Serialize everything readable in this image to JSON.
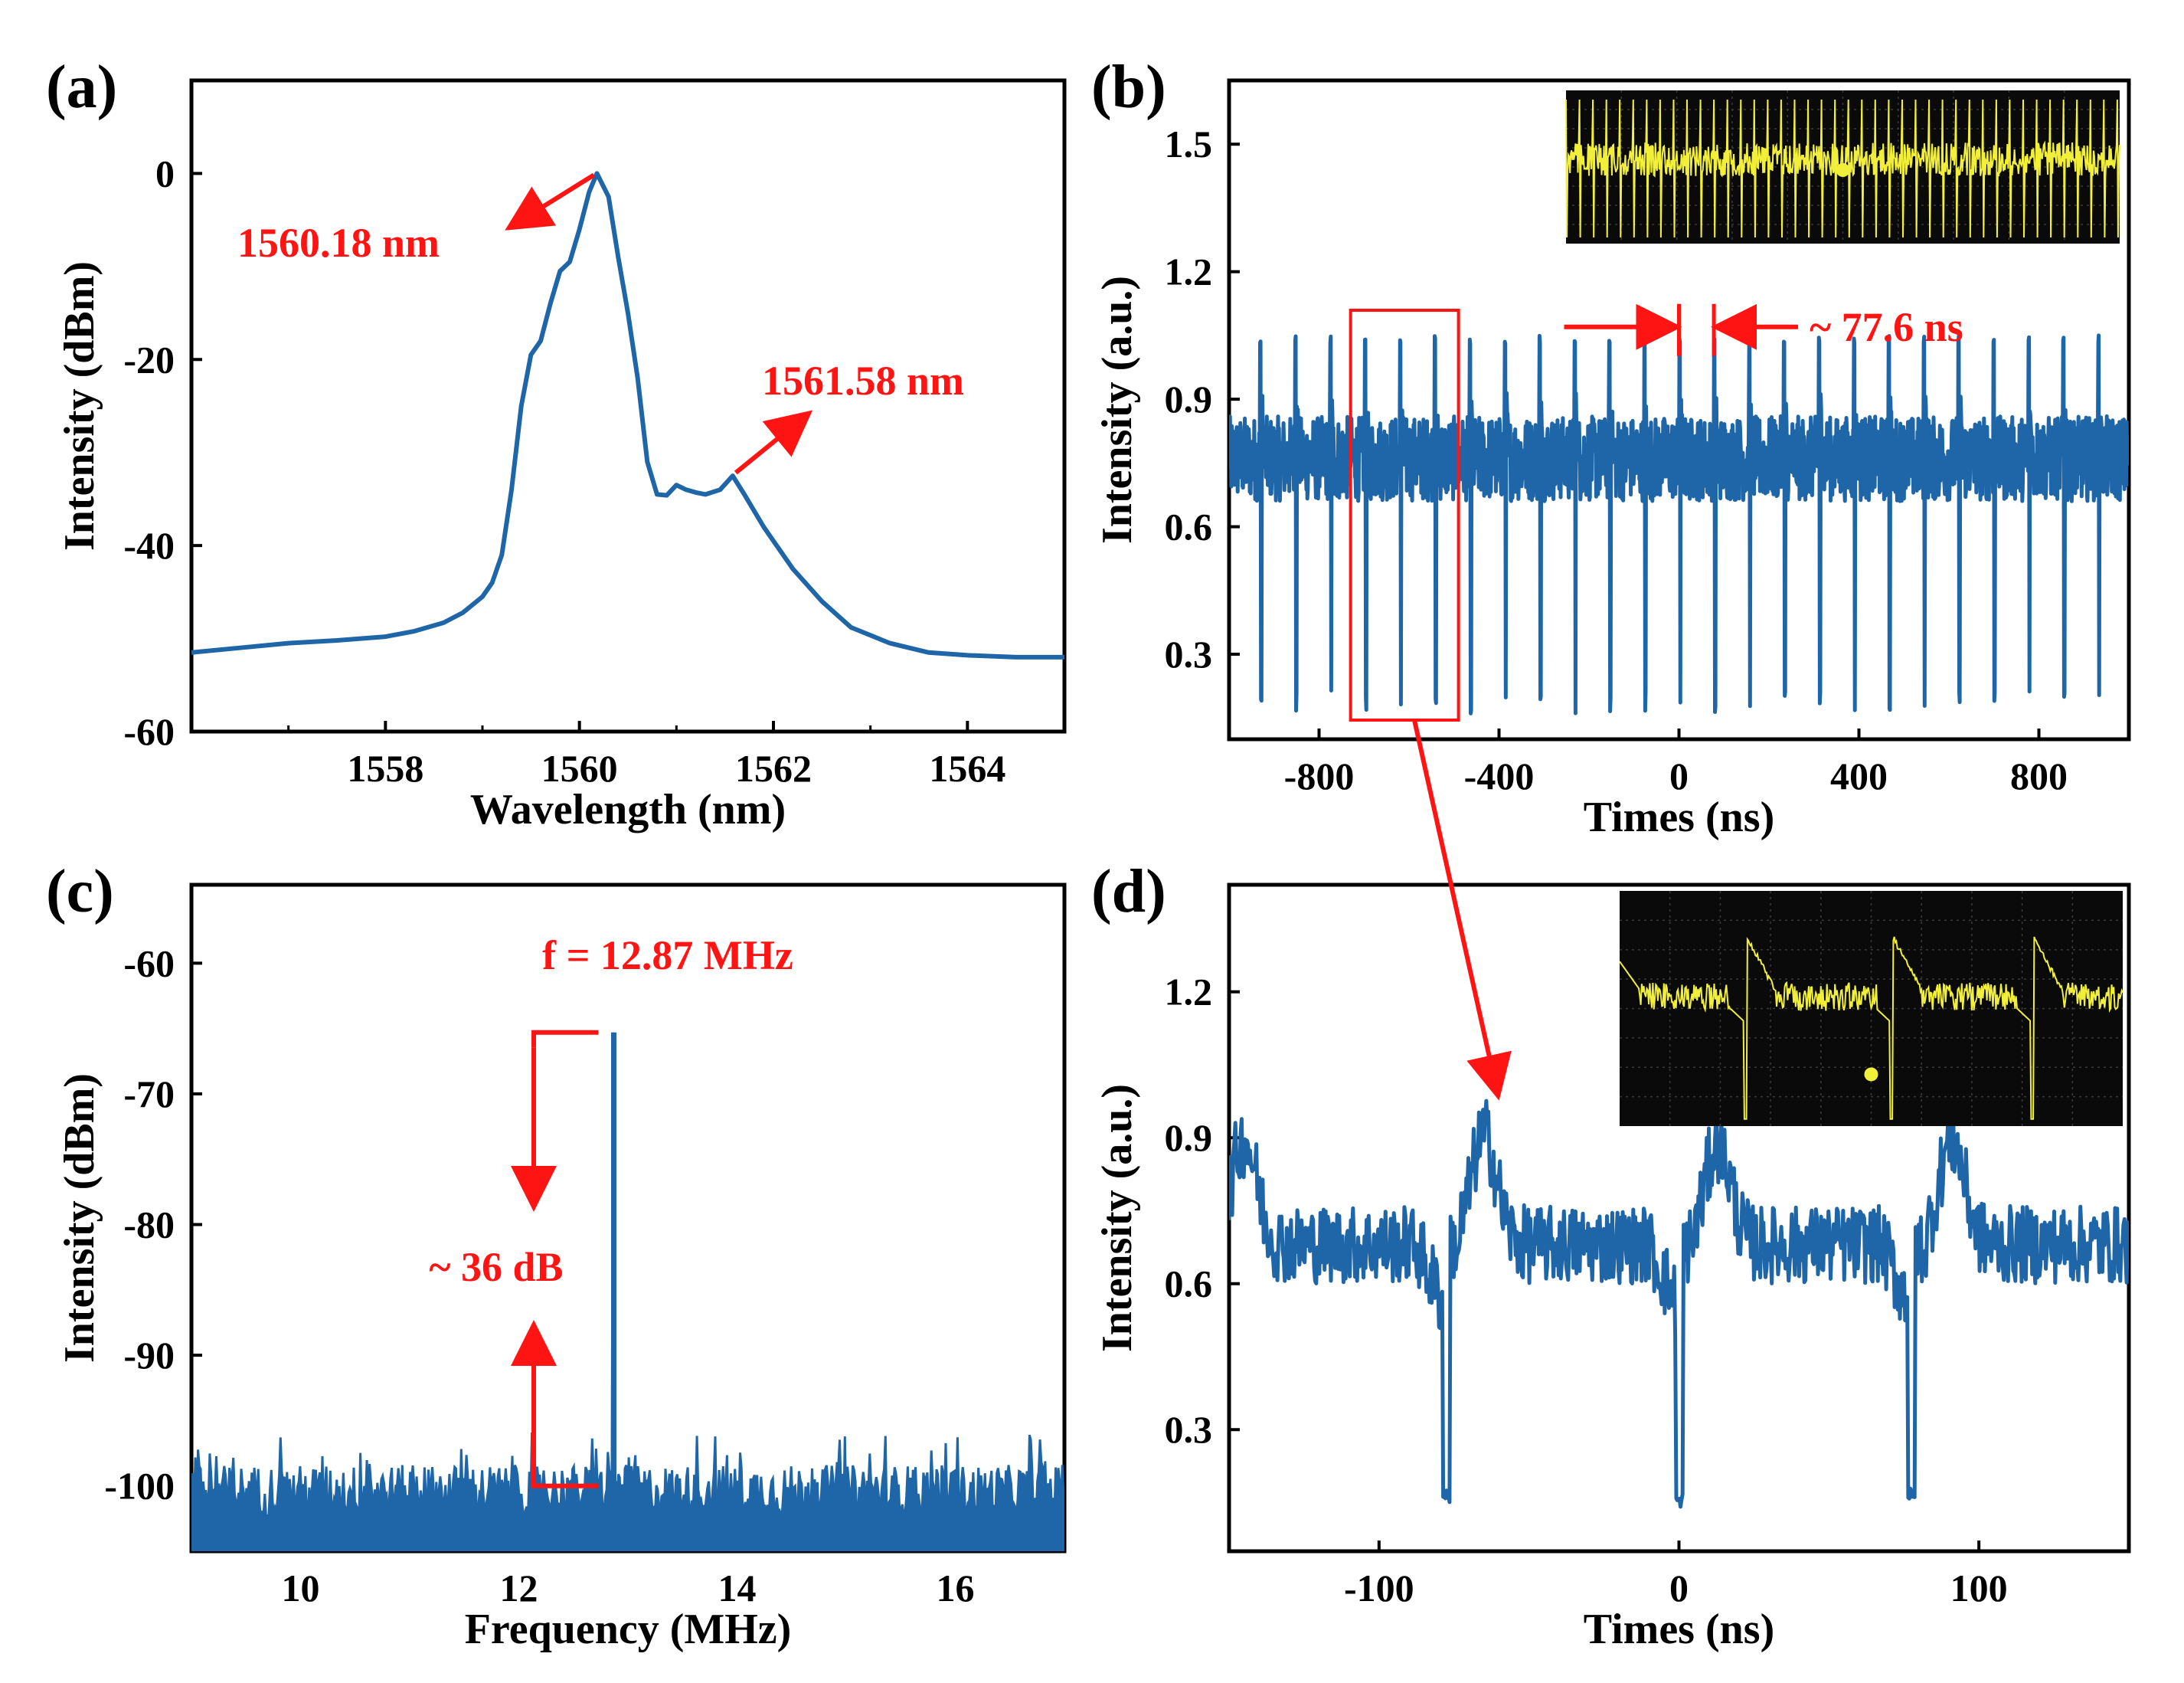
{
  "colors": {
    "trace": "#1f66a8",
    "annotation": "#ff1414",
    "scope_bg": "#0a0a0a",
    "scope_trace": "#f2ef3a"
  },
  "chart_data": [
    {
      "id": "a",
      "panel_label": "(a)",
      "type": "line",
      "title": "",
      "xlabel": "Wavelength (nm)",
      "ylabel": "Intensity (dBm)",
      "xlim": [
        1556.0,
        1565.0
      ],
      "ylim": [
        -60,
        10
      ],
      "xticks": [
        1558,
        1560,
        1562,
        1564
      ],
      "yticks": [
        0,
        -20,
        -40,
        -60
      ],
      "x": [
        1556.0,
        1556.5,
        1557.0,
        1557.5,
        1558.0,
        1558.3,
        1558.6,
        1558.8,
        1559.0,
        1559.1,
        1559.2,
        1559.3,
        1559.4,
        1559.5,
        1559.6,
        1559.7,
        1559.8,
        1559.9,
        1560.0,
        1560.1,
        1560.18,
        1560.3,
        1560.4,
        1560.5,
        1560.6,
        1560.7,
        1560.8,
        1560.9,
        1561.0,
        1561.1,
        1561.2,
        1561.3,
        1561.45,
        1561.58,
        1561.7,
        1561.9,
        1562.2,
        1562.5,
        1562.8,
        1563.2,
        1563.6,
        1564.0,
        1564.5,
        1565.0
      ],
      "y": [
        -51.5,
        -51.0,
        -50.5,
        -50.2,
        -49.8,
        -49.2,
        -48.3,
        -47.2,
        -45.5,
        -44.0,
        -41.0,
        -34.0,
        -25.0,
        -19.5,
        -18.0,
        -14.0,
        -10.5,
        -9.5,
        -6.0,
        -2.0,
        0.0,
        -2.5,
        -9.0,
        -15.0,
        -22.0,
        -31.0,
        -34.5,
        -34.6,
        -33.5,
        -34.0,
        -34.3,
        -34.5,
        -34.0,
        -32.5,
        -34.5,
        -38.0,
        -42.5,
        -46.0,
        -48.8,
        -50.5,
        -51.5,
        -51.8,
        -52.0,
        -52.0
      ],
      "annotations": [
        {
          "text": "1560.18 nm",
          "x": 1560.18,
          "y": 0.0
        },
        {
          "text": "1561.58 nm",
          "x": 1561.58,
          "y": -32.5
        }
      ]
    },
    {
      "id": "b",
      "panel_label": "(b)",
      "type": "line",
      "title": "",
      "xlabel": "Times (ns)",
      "ylabel": "Intensity (a.u.)",
      "xlim": [
        -1000,
        1000
      ],
      "ylim": [
        0.1,
        1.65
      ],
      "xticks": [
        -800,
        -400,
        0,
        400,
        800
      ],
      "yticks": [
        0.3,
        0.6,
        0.9,
        1.2,
        1.5
      ],
      "series": [
        {
          "name": "pulse train",
          "period_ns": 77.6,
          "baseline": 0.76,
          "pulse_peak_max": 1.05,
          "pulse_dip_min": 0.16
        }
      ],
      "annotations": [
        {
          "text": "~ 77.6 ns",
          "x": 38.8,
          "y": 1.07
        }
      ],
      "zoom_box_x": [
        -730,
        -490
      ],
      "inset": "oscilloscope screen"
    },
    {
      "id": "c",
      "panel_label": "(c)",
      "type": "line",
      "title": "",
      "xlabel": "Frequency (MHz)",
      "ylabel": "Intensity  (dBm)",
      "xlim": [
        9.0,
        17.0
      ],
      "ylim": [
        -105,
        -54
      ],
      "xticks": [
        10,
        12,
        14,
        16
      ],
      "yticks": [
        -60,
        -70,
        -80,
        -90,
        -100
      ],
      "series": [
        {
          "name": "RF spectrum",
          "peak_x": 12.87,
          "peak_y": -65.3,
          "noise_floor": -101
        }
      ],
      "annotations": [
        {
          "text": "f = 12.87 MHz",
          "x": 12.87,
          "y": -60
        },
        {
          "text": "~ 36 dB",
          "x": 12.2,
          "y": -84
        }
      ]
    },
    {
      "id": "d",
      "panel_label": "(d)",
      "type": "line",
      "title": "",
      "xlabel": "Times (ns)",
      "ylabel": "Intensity (a.u.)",
      "xlim": [
        -150,
        150
      ],
      "ylim": [
        0.05,
        1.42
      ],
      "xticks": [
        -100,
        0,
        100
      ],
      "yticks": [
        0.3,
        0.6,
        0.9,
        1.2
      ],
      "series": [
        {
          "name": "zoomed pulses",
          "pulse_centers_ns": [
            -77.6,
            0,
            77.6
          ],
          "baseline": 0.68,
          "dips": [
            0.15,
            0.14,
            0.15
          ],
          "peaks": [
            0.92,
            0.93,
            0.91,
            0.92
          ]
        }
      ],
      "inset": "oscilloscope screen"
    }
  ]
}
